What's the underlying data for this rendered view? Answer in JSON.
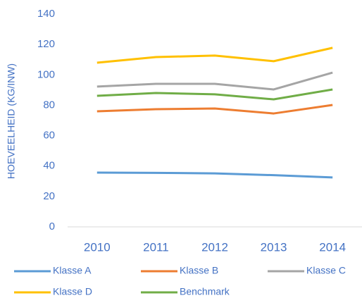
{
  "chart_data": {
    "type": "line",
    "y_axis_label": "HOEVEELHEID (KG/INW)",
    "categories": [
      "2010",
      "2011",
      "2012",
      "2013",
      "2014"
    ],
    "series": [
      {
        "name": "Klasse A",
        "color": "#5b9bd5",
        "values": [
          35.7,
          35.5,
          35.2,
          34,
          32.5
        ]
      },
      {
        "name": "Klasse B",
        "color": "#ed7d31",
        "values": [
          76,
          77.4,
          77.9,
          74.6,
          80.2
        ]
      },
      {
        "name": "Klasse C",
        "color": "#a5a5a5",
        "values": [
          92.3,
          94.1,
          94.1,
          90.4,
          101.5
        ]
      },
      {
        "name": "Klasse D",
        "color": "#ffc000",
        "values": [
          108,
          111.7,
          112.7,
          109,
          117.8
        ]
      },
      {
        "name": "Benchmark",
        "color": "#70ad47",
        "values": [
          86.2,
          88.1,
          87.2,
          83.9,
          90.4
        ]
      }
    ],
    "ylim": [
      0,
      140
    ],
    "yticks": [
      0,
      20,
      40,
      60,
      80,
      100,
      120,
      140
    ],
    "grid": false,
    "legend": "bottom"
  }
}
